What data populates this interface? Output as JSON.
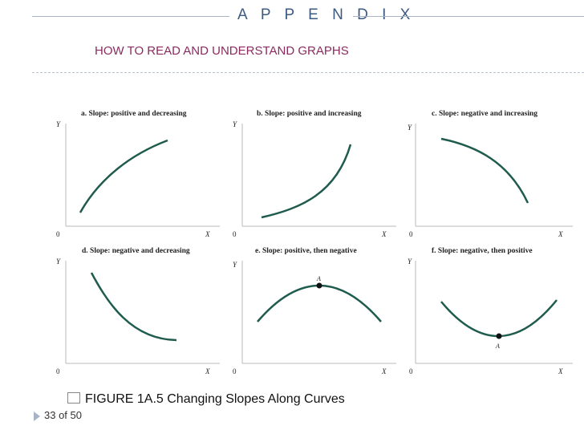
{
  "header": {
    "section_title": "A P P E N D I X",
    "subtitle": "HOW TO READ AND UNDERSTAND GRAPHS"
  },
  "colors": {
    "curve": "#1f5c4e",
    "section": "#3c5a82",
    "subtitle": "#8a2a5f"
  },
  "graphs": [
    {
      "title": "a. Slope: positive and decreasing",
      "y": "Y",
      "x": "X",
      "origin": "0",
      "point": ""
    },
    {
      "title": "b. Slope: positive and increasing",
      "y": "Y",
      "x": "X",
      "origin": "0",
      "point": ""
    },
    {
      "title": "c. Slope: negative and increasing",
      "y": "Y",
      "x": "X",
      "origin": "0",
      "point": ""
    },
    {
      "title": "d. Slope: negative and decreasing",
      "y": "Y",
      "x": "X",
      "origin": "0",
      "point": ""
    },
    {
      "title": "e. Slope: positive, then negative",
      "y": "Y",
      "x": "X",
      "origin": "0",
      "point": "A"
    },
    {
      "title": "f. Slope: negative, then positive",
      "y": "Y",
      "x": "X",
      "origin": "0",
      "point": "A"
    }
  ],
  "caption": "FIGURE 1A.5  Changing Slopes Along Curves",
  "footer": {
    "page": "33 of 50"
  }
}
